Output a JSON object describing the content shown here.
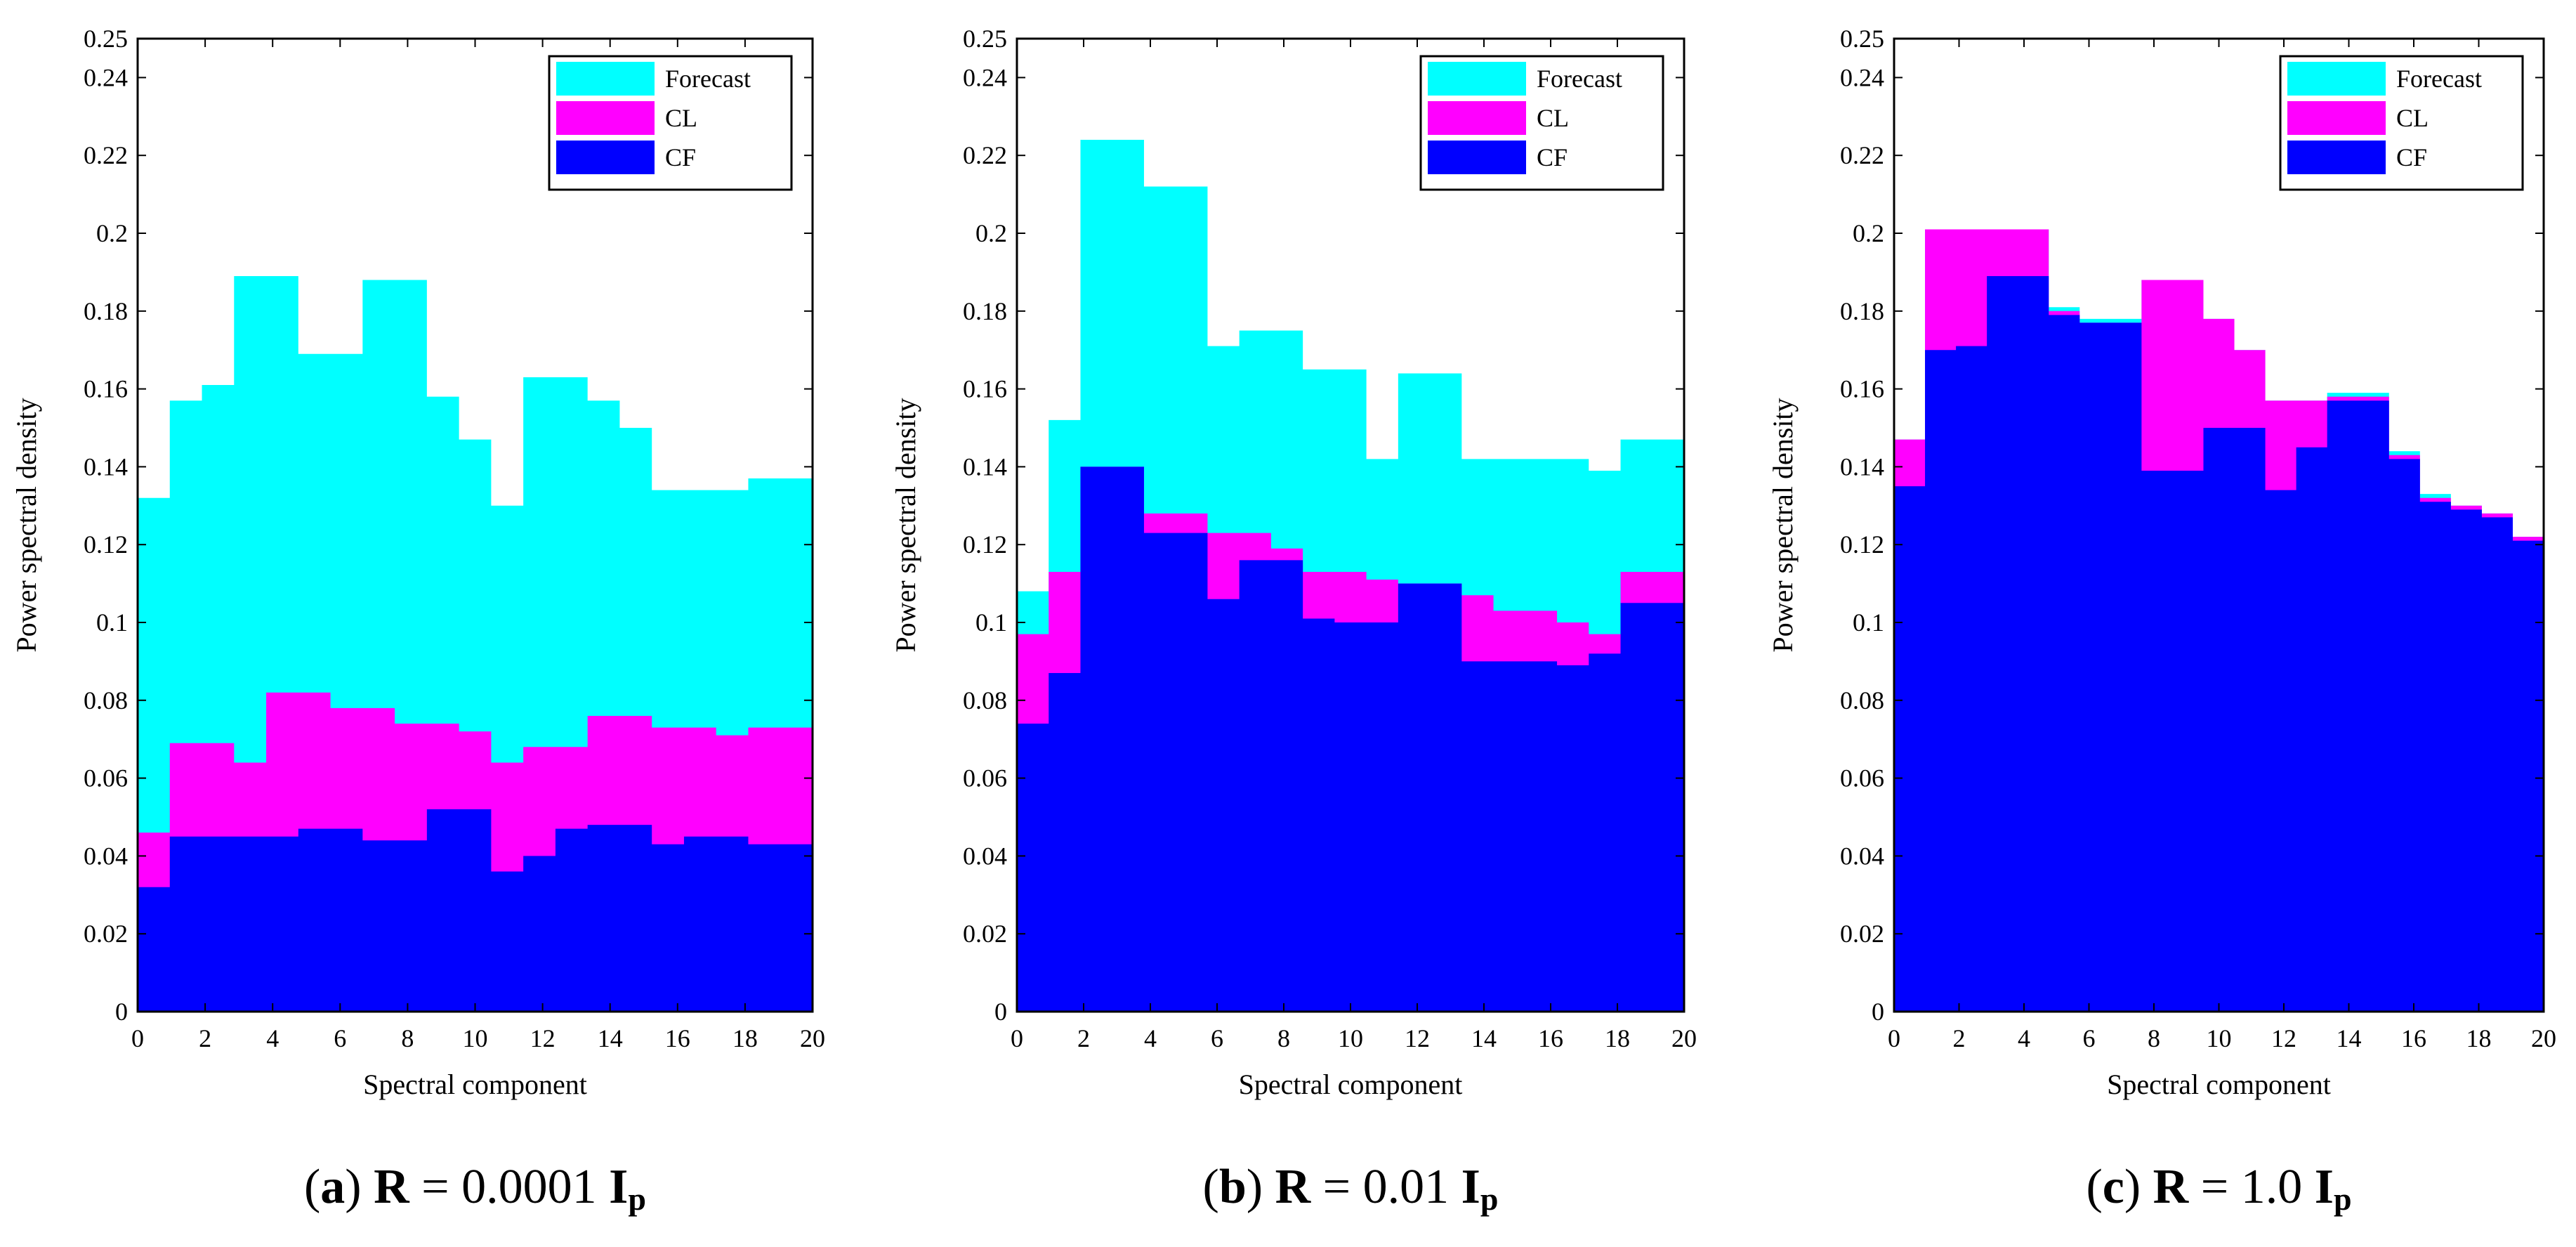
{
  "chart_data": [
    {
      "type": "area",
      "step": true,
      "caption": {
        "letter": "a",
        "symbol": "R",
        "equals": "=",
        "value": "0.0001",
        "unit_main": "I",
        "unit_sub": "p"
      },
      "title": "",
      "xlabel": "Spectral component",
      "ylabel": "Power spectral density",
      "xlim": [
        0,
        20
      ],
      "ylim": [
        0,
        0.25
      ],
      "xticks": [
        "0",
        "2",
        "4",
        "6",
        "8",
        "10",
        "12",
        "14",
        "16",
        "18",
        "20"
      ],
      "yticks": [
        "0",
        "0.02",
        "0.04",
        "0.06",
        "0.08",
        "0.1",
        "0.12",
        "0.14",
        "0.16",
        "0.18",
        "0.2",
        "0.22",
        "0.24",
        "0.25"
      ],
      "legend": "top-right",
      "series": [
        {
          "name": "Forecast",
          "color": "#00FFFF",
          "values": [
            0.132,
            0.157,
            0.161,
            0.189,
            0.189,
            0.169,
            0.169,
            0.188,
            0.188,
            0.158,
            0.147,
            0.13,
            0.163,
            0.163,
            0.157,
            0.15,
            0.134,
            0.134,
            0.134,
            0.137,
            0.137
          ]
        },
        {
          "name": "CL",
          "color": "#FF00FF",
          "values": [
            0.046,
            0.069,
            0.069,
            0.064,
            0.082,
            0.082,
            0.078,
            0.078,
            0.074,
            0.074,
            0.072,
            0.064,
            0.068,
            0.068,
            0.076,
            0.076,
            0.073,
            0.073,
            0.071,
            0.073,
            0.073
          ]
        },
        {
          "name": "CF",
          "color": "#0000FF",
          "values": [
            0.032,
            0.045,
            0.045,
            0.045,
            0.045,
            0.047,
            0.047,
            0.044,
            0.044,
            0.052,
            0.052,
            0.036,
            0.04,
            0.047,
            0.048,
            0.048,
            0.043,
            0.045,
            0.045,
            0.043,
            0.043
          ]
        }
      ]
    },
    {
      "type": "area",
      "step": true,
      "caption": {
        "letter": "b",
        "symbol": "R",
        "equals": "=",
        "value": "0.01",
        "unit_main": "I",
        "unit_sub": "p"
      },
      "title": "",
      "xlabel": "Spectral component",
      "ylabel": "Power spectral density",
      "xlim": [
        0,
        20
      ],
      "ylim": [
        0,
        0.25
      ],
      "xticks": [
        "0",
        "2",
        "4",
        "6",
        "8",
        "10",
        "12",
        "14",
        "16",
        "18",
        "20"
      ],
      "yticks": [
        "0",
        "0.02",
        "0.04",
        "0.06",
        "0.08",
        "0.1",
        "0.12",
        "0.14",
        "0.16",
        "0.18",
        "0.2",
        "0.22",
        "0.24",
        "0.25"
      ],
      "legend": "top-right",
      "series": [
        {
          "name": "Forecast",
          "color": "#00FFFF",
          "values": [
            0.108,
            0.152,
            0.224,
            0.224,
            0.212,
            0.212,
            0.171,
            0.175,
            0.175,
            0.165,
            0.165,
            0.142,
            0.164,
            0.164,
            0.142,
            0.142,
            0.142,
            0.142,
            0.139,
            0.147,
            0.147
          ]
        },
        {
          "name": "CL",
          "color": "#FF00FF",
          "values": [
            0.097,
            0.113,
            0.14,
            0.14,
            0.128,
            0.128,
            0.123,
            0.123,
            0.119,
            0.113,
            0.113,
            0.111,
            0.11,
            0.11,
            0.107,
            0.103,
            0.103,
            0.1,
            0.097,
            0.113,
            0.113
          ]
        },
        {
          "name": "CF",
          "color": "#0000FF",
          "values": [
            0.074,
            0.087,
            0.14,
            0.14,
            0.123,
            0.123,
            0.106,
            0.116,
            0.116,
            0.101,
            0.1,
            0.1,
            0.11,
            0.11,
            0.09,
            0.09,
            0.09,
            0.089,
            0.092,
            0.105,
            0.105
          ]
        }
      ]
    },
    {
      "type": "area",
      "step": true,
      "caption": {
        "letter": "c",
        "symbol": "R",
        "equals": "=",
        "value": "1.0",
        "unit_main": "I",
        "unit_sub": "p"
      },
      "title": "",
      "xlabel": "Spectral component",
      "ylabel": "Power spectral density",
      "xlim": [
        0,
        20
      ],
      "ylim": [
        0,
        0.25
      ],
      "xticks": [
        "0",
        "2",
        "4",
        "6",
        "8",
        "10",
        "12",
        "14",
        "16",
        "18",
        "20"
      ],
      "yticks": [
        "0",
        "0.02",
        "0.04",
        "0.06",
        "0.08",
        "0.1",
        "0.12",
        "0.14",
        "0.16",
        "0.18",
        "0.2",
        "0.22",
        "0.24",
        "0.25"
      ],
      "legend": "top-right",
      "series": [
        {
          "name": "Forecast",
          "color": "#00FFFF",
          "values": [
            0.147,
            0.201,
            0.201,
            0.201,
            0.201,
            0.181,
            0.178,
            0.178,
            0.188,
            0.188,
            0.178,
            0.17,
            0.157,
            0.157,
            0.159,
            0.159,
            0.144,
            0.133,
            0.13,
            0.128,
            0.122
          ]
        },
        {
          "name": "CL",
          "color": "#FF00FF",
          "values": [
            0.147,
            0.201,
            0.201,
            0.201,
            0.201,
            0.18,
            0.177,
            0.177,
            0.188,
            0.188,
            0.178,
            0.17,
            0.157,
            0.157,
            0.158,
            0.158,
            0.143,
            0.132,
            0.13,
            0.128,
            0.122
          ]
        },
        {
          "name": "CF",
          "color": "#0000FF",
          "values": [
            0.135,
            0.17,
            0.171,
            0.189,
            0.189,
            0.179,
            0.177,
            0.177,
            0.139,
            0.139,
            0.15,
            0.15,
            0.134,
            0.145,
            0.157,
            0.157,
            0.142,
            0.131,
            0.129,
            0.127,
            0.121
          ]
        }
      ]
    }
  ]
}
